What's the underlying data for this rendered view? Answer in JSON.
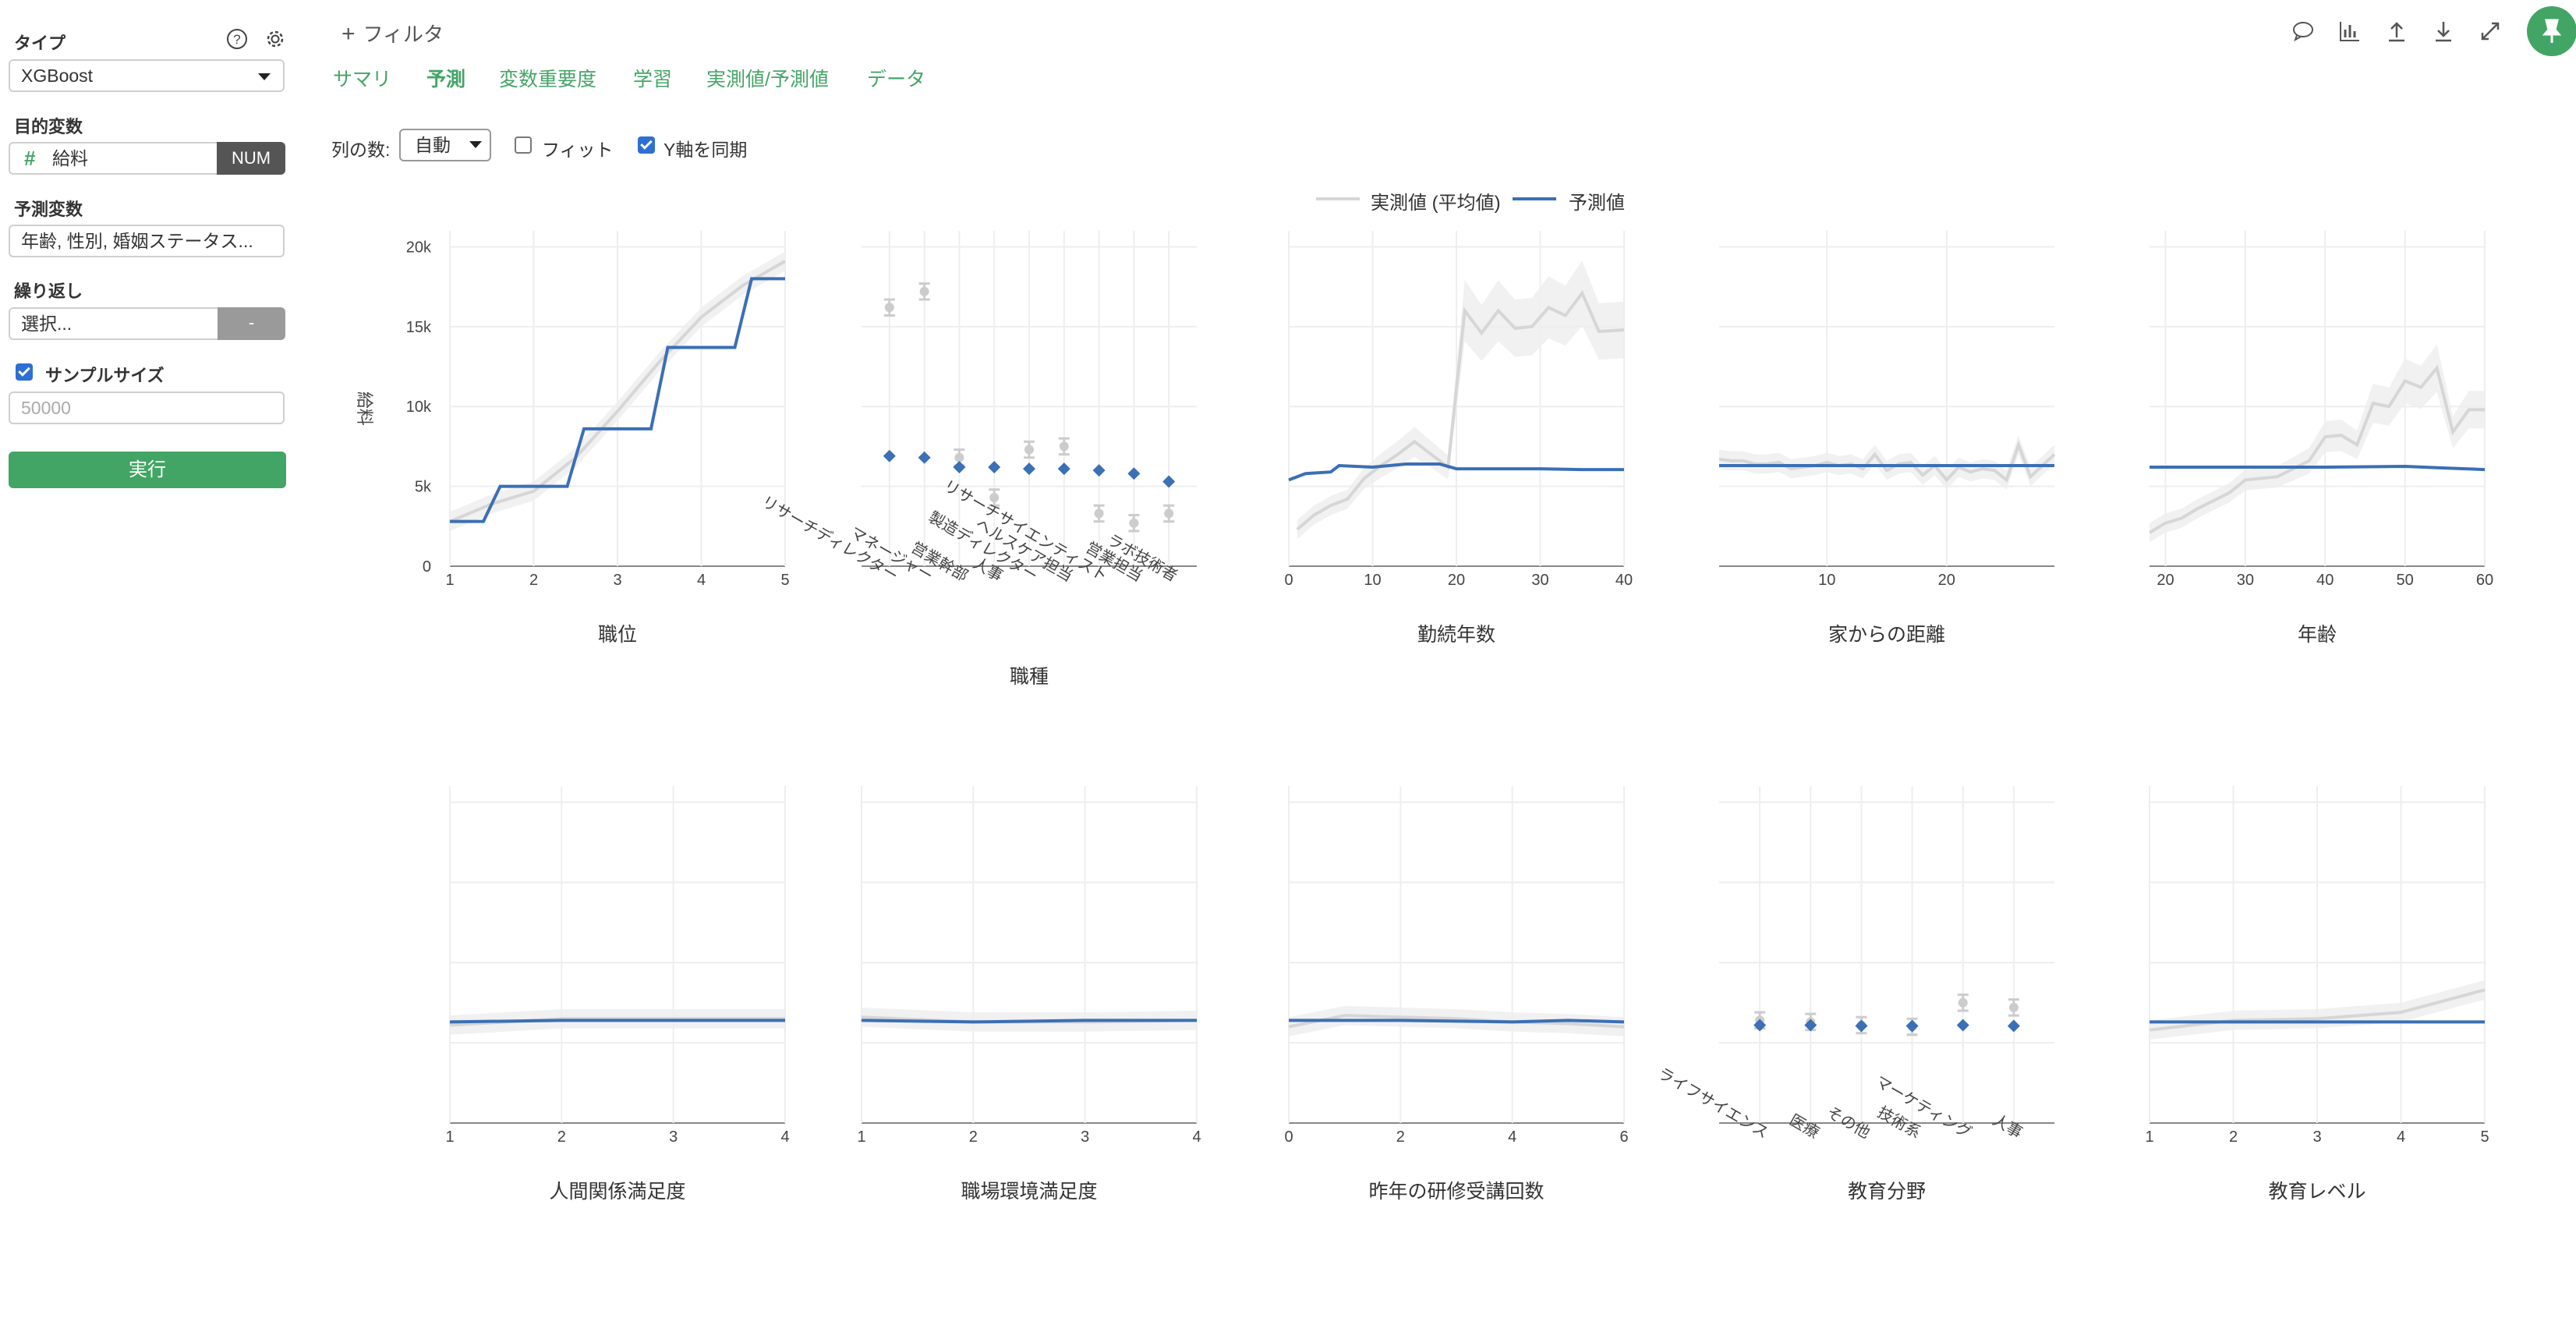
{
  "sidebar": {
    "type_label": "タイプ",
    "type_value": "XGBoost",
    "target_label": "目的変数",
    "target_value": "給料",
    "target_type": "NUM",
    "predictors_label": "予測変数",
    "predictors_value": "年齢, 性別, 婚姻ステータス...",
    "repeat_label": "繰り返し",
    "repeat_placeholder": "選択...",
    "repeat_button": "-",
    "sample_size_label": "サンプルサイズ",
    "sample_size_checked": true,
    "sample_size_placeholder": "50000",
    "run_button": "実行"
  },
  "toolbar": {
    "filter_label": "フィルタ"
  },
  "tabs": [
    "サマリ",
    "予測",
    "変数重要度",
    "学習",
    "実測値/予測値",
    "データ"
  ],
  "active_tab": "予測",
  "options": {
    "columns_label": "列の数:",
    "columns_value": "自動",
    "fit_label": "フィット",
    "fit_checked": false,
    "sync_y_label": "Y軸を同期",
    "sync_y_checked": true
  },
  "legend": [
    "実測値 (平均値)",
    "予測値"
  ],
  "colors": {
    "accent": "#43a565",
    "predicted": "#3b6fb6",
    "actual": "#d6d6d6",
    "band": "#eeeeee"
  },
  "chart_data": [
    {
      "type": "line",
      "xlabel": "職位",
      "ylabel": "給料",
      "ylim": [
        0,
        21000
      ],
      "y_ticks": [
        "0",
        "5k",
        "10k",
        "15k",
        "20k"
      ],
      "x_ticks": [
        "1",
        "2",
        "3",
        "4",
        "5"
      ],
      "actual": {
        "x": [
          1,
          1.5,
          2,
          2.5,
          3,
          3.5,
          4,
          4.5,
          5
        ],
        "y": [
          2800,
          3900,
          4700,
          6800,
          9700,
          12800,
          15600,
          17600,
          19100
        ]
      },
      "predicted": {
        "x": [
          1,
          1.4,
          1.6,
          2.4,
          2.6,
          3.4,
          3.6,
          4.4,
          4.6,
          5
        ],
        "y": [
          2800,
          2800,
          5000,
          5000,
          8600,
          8600,
          13700,
          13700,
          18000,
          18000
        ]
      }
    },
    {
      "type": "scatter",
      "xlabel": "職種",
      "ylim": [
        0,
        21000
      ],
      "categories": [
        "リサーチディレクター",
        "マネージャー",
        "営業幹部",
        "人事",
        "製造ディレクター",
        "ヘルスケア担当",
        "リサーチサイエンティスト",
        "営業担当",
        "ラボ技術者"
      ],
      "actual": [
        16200,
        17200,
        6800,
        4300,
        7300,
        7500,
        3300,
        2700,
        3300
      ],
      "predicted": [
        6900,
        6800,
        6200,
        6200,
        6100,
        6100,
        6000,
        5800,
        5300
      ]
    },
    {
      "type": "line",
      "xlabel": "勤続年数",
      "ylim": [
        0,
        21000
      ],
      "x_ticks": [
        "0",
        "10",
        "20",
        "30",
        "40"
      ],
      "actual": {
        "x": [
          1,
          3,
          5,
          7,
          9,
          11,
          13,
          15,
          17,
          19,
          21,
          23,
          25,
          27,
          29,
          31,
          33,
          35,
          37,
          40
        ],
        "y": [
          2300,
          3200,
          3800,
          4200,
          5500,
          6300,
          7000,
          7800,
          7000,
          6200,
          16000,
          14600,
          16000,
          14900,
          15000,
          16200,
          15700,
          17100,
          14700,
          14800
        ]
      },
      "predicted": {
        "x": [
          0,
          2,
          5,
          6,
          10,
          14,
          18,
          20,
          25,
          30,
          35,
          40
        ],
        "y": [
          5400,
          5800,
          5900,
          6300,
          6200,
          6400,
          6400,
          6100,
          6100,
          6100,
          6050,
          6050
        ]
      }
    },
    {
      "type": "line",
      "xlabel": "家からの距離",
      "ylim": [
        0,
        21000
      ],
      "x_ticks": [
        "10",
        "20"
      ],
      "actual": {
        "x": [
          1,
          2,
          3,
          4,
          5,
          6,
          7,
          8,
          9,
          10,
          11,
          12,
          13,
          14,
          15,
          16,
          17,
          18,
          19,
          20,
          21,
          22,
          23,
          24,
          25,
          26,
          27,
          28,
          29
        ],
        "y": [
          6700,
          6600,
          6600,
          6400,
          6400,
          6500,
          6100,
          6200,
          6300,
          6500,
          6300,
          6400,
          6100,
          7000,
          6000,
          6400,
          6500,
          5700,
          6300,
          5400,
          6200,
          5900,
          6100,
          6000,
          5400,
          7600,
          5600,
          6300,
          7000
        ]
      },
      "predicted": {
        "x": [
          1,
          29
        ],
        "y": [
          6300,
          6300
        ]
      }
    },
    {
      "type": "line",
      "xlabel": "年齢",
      "ylim": [
        0,
        21000
      ],
      "x_ticks": [
        "20",
        "30",
        "40",
        "50",
        "60"
      ],
      "actual": {
        "x": [
          18,
          20,
          22,
          24,
          26,
          28,
          30,
          32,
          34,
          36,
          38,
          40,
          42,
          44,
          46,
          48,
          50,
          52,
          54,
          56,
          58,
          60
        ],
        "y": [
          2100,
          2700,
          3000,
          3600,
          4100,
          4600,
          5400,
          5500,
          5600,
          6100,
          6600,
          8100,
          8200,
          7600,
          10200,
          10000,
          11600,
          11200,
          12400,
          8400,
          9800,
          9800
        ]
      },
      "predicted": {
        "x": [
          18,
          30,
          40,
          50,
          55,
          60
        ],
        "y": [
          6200,
          6200,
          6200,
          6250,
          6150,
          6050
        ]
      }
    },
    {
      "type": "line",
      "xlabel": "人間関係満足度",
      "ylim": [
        0,
        21000
      ],
      "x_ticks": [
        "1",
        "2",
        "3",
        "4"
      ],
      "actual": {
        "x": [
          1,
          2,
          3,
          4
        ],
        "y": [
          6100,
          6500,
          6500,
          6500
        ]
      },
      "predicted": {
        "x": [
          1,
          2,
          3,
          4
        ],
        "y": [
          6300,
          6400,
          6400,
          6400
        ]
      }
    },
    {
      "type": "line",
      "xlabel": "職場環境満足度",
      "ylim": [
        0,
        21000
      ],
      "x_ticks": [
        "1",
        "2",
        "3",
        "4"
      ],
      "actual": {
        "x": [
          1,
          2,
          3,
          4
        ],
        "y": [
          6600,
          6300,
          6300,
          6400
        ]
      },
      "predicted": {
        "x": [
          1,
          2,
          3,
          4
        ],
        "y": [
          6400,
          6300,
          6400,
          6400
        ]
      }
    },
    {
      "type": "line",
      "xlabel": "昨年の研修受講回数",
      "ylim": [
        0,
        21000
      ],
      "x_ticks": [
        "0",
        "2",
        "4",
        "6"
      ],
      "actual": {
        "x": [
          0,
          1,
          2,
          3,
          4,
          5,
          6
        ],
        "y": [
          6000,
          6700,
          6600,
          6500,
          6300,
          6200,
          6000
        ]
      },
      "predicted": {
        "x": [
          0,
          2,
          4,
          5,
          6
        ],
        "y": [
          6400,
          6400,
          6300,
          6400,
          6300
        ]
      }
    },
    {
      "type": "scatter",
      "xlabel": "教育分野",
      "ylim": [
        0,
        21000
      ],
      "categories": [
        "ライフサイエンス",
        "医療",
        "その他",
        "技術系",
        "マーケティング",
        "人事"
      ],
      "actual": [
        6400,
        6300,
        6100,
        6000,
        7500,
        7200
      ],
      "predicted": [
        6100,
        6100,
        6050,
        6050,
        6100,
        6050
      ]
    },
    {
      "type": "line",
      "xlabel": "教育レベル",
      "ylim": [
        0,
        21000
      ],
      "x_ticks": [
        "1",
        "2",
        "3",
        "4",
        "5"
      ],
      "actual": {
        "x": [
          1,
          2,
          3,
          4,
          5
        ],
        "y": [
          5800,
          6400,
          6500,
          6900,
          8300
        ]
      },
      "predicted": {
        "x": [
          1,
          2,
          3,
          4,
          5
        ],
        "y": [
          6300,
          6300,
          6300,
          6300,
          6300
        ]
      }
    }
  ]
}
